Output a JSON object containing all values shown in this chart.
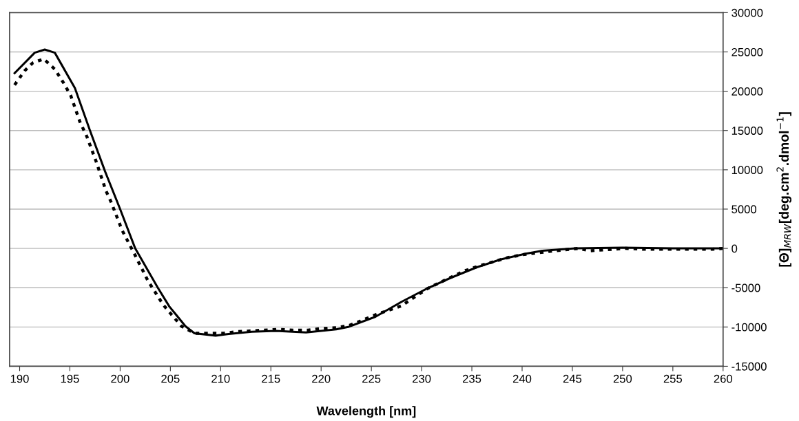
{
  "chart_data": {
    "type": "line",
    "xlabel": "Wavelength [nm]",
    "ylabel": "[Θ]$_{MRW}$[deg.cm$^{2}$.dmol$^{−1}$]",
    "xlim": [
      189,
      260
    ],
    "xticks": [
      190,
      195,
      200,
      205,
      210,
      215,
      220,
      225,
      230,
      235,
      240,
      245,
      250,
      255,
      260
    ],
    "ylim": [
      -15000,
      30000
    ],
    "yticks": [
      -15000,
      -10000,
      -5000,
      0,
      5000,
      10000,
      15000,
      20000,
      25000,
      30000
    ],
    "grid": "y",
    "series": [
      {
        "color": "#000000",
        "line_style": "solid",
        "x": [
          189.5,
          191.5,
          192.5,
          193.5,
          195.5,
          197.0,
          198.5,
          200.0,
          201.5,
          203.75,
          204.9,
          206.5,
          207.4,
          209.5,
          210.8,
          213.1,
          215.5,
          218.5,
          221.5,
          222.7,
          225.4,
          228.0,
          230.4,
          232.8,
          235.5,
          237.9,
          240.3,
          242.0,
          245.3,
          250,
          255,
          260
        ],
        "values": [
          22300,
          24900,
          25300,
          24900,
          20400,
          15000,
          9800,
          5000,
          0,
          -5000,
          -7400,
          -9900,
          -10800,
          -11100,
          -10900,
          -10600,
          -10500,
          -10700,
          -10300,
          -10000,
          -8700,
          -6800,
          -5200,
          -3800,
          -2400,
          -1400,
          -700,
          -300,
          0,
          100,
          0,
          0
        ]
      },
      {
        "color": "#000000",
        "line_style": "dotted",
        "x": [
          189.5,
          190.5,
          191.3,
          192.4,
          193.5,
          194.4,
          195.1,
          196.0,
          196.7,
          197.6,
          198.6,
          199.1,
          200.2,
          201.5,
          202.8,
          204.3,
          206.1,
          207.4,
          210.3,
          211.6,
          213.0,
          214.3,
          215.8,
          217.2,
          218.7,
          220.0,
          221.5,
          222.8,
          224.2,
          225.5,
          226.9,
          228.0,
          229.4,
          230.6,
          231.9,
          233.2,
          234.4,
          235.8,
          238.5,
          240.0,
          242.6,
          245.6,
          246.8,
          250.3,
          252,
          256,
          259,
          260
        ],
        "values": [
          20800,
          22600,
          23600,
          24100,
          22800,
          21000,
          19400,
          16100,
          14200,
          11100,
          7300,
          5900,
          2300,
          -900,
          -4200,
          -7200,
          -9900,
          -10800,
          -10800,
          -10600,
          -10500,
          -10400,
          -10300,
          -10400,
          -10400,
          -10200,
          -10100,
          -9800,
          -9100,
          -8400,
          -7800,
          -7300,
          -6100,
          -5100,
          -4300,
          -3500,
          -2800,
          -2200,
          -1200,
          -800,
          -400,
          0,
          -300,
          0,
          -100,
          -100,
          -100,
          0
        ]
      }
    ]
  }
}
